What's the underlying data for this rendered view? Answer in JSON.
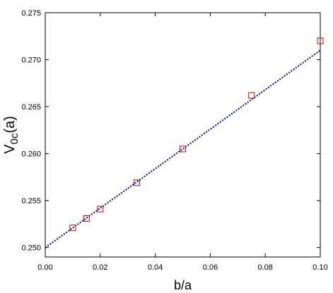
{
  "chart_data": {
    "type": "scatter",
    "title": "",
    "xlabel": "b/a",
    "ylabel": {
      "main": "V",
      "sub": "0c",
      "tail": "(a)"
    },
    "xlim": [
      0.0,
      0.1
    ],
    "ylim": [
      0.249,
      0.275
    ],
    "x_ticks": [
      0.0,
      0.02,
      0.04,
      0.06,
      0.08,
      0.1
    ],
    "x_tick_labels": [
      "0.00",
      "0.02",
      "0.04",
      "0.06",
      "0.08",
      "0.10"
    ],
    "y_ticks": [
      0.25,
      0.255,
      0.26,
      0.265,
      0.27,
      0.275
    ],
    "y_tick_labels": [
      "0.250",
      "0.255",
      "0.260",
      "0.265",
      "0.270",
      "0.275"
    ],
    "grid": false,
    "legend": "none",
    "series": [
      {
        "kind": "markers",
        "marker": "open-square",
        "color": "#cc0000",
        "x": [
          0.01,
          0.015,
          0.02,
          0.0333,
          0.05,
          0.075,
          0.1
        ],
        "y": [
          0.2521,
          0.2531,
          0.2541,
          0.2569,
          0.2605,
          0.2662,
          0.272
        ]
      },
      {
        "kind": "line",
        "style": "dotted",
        "color": "#0000cc",
        "x": [
          0.0,
          0.1
        ],
        "y": [
          0.25,
          0.271
        ]
      }
    ]
  }
}
